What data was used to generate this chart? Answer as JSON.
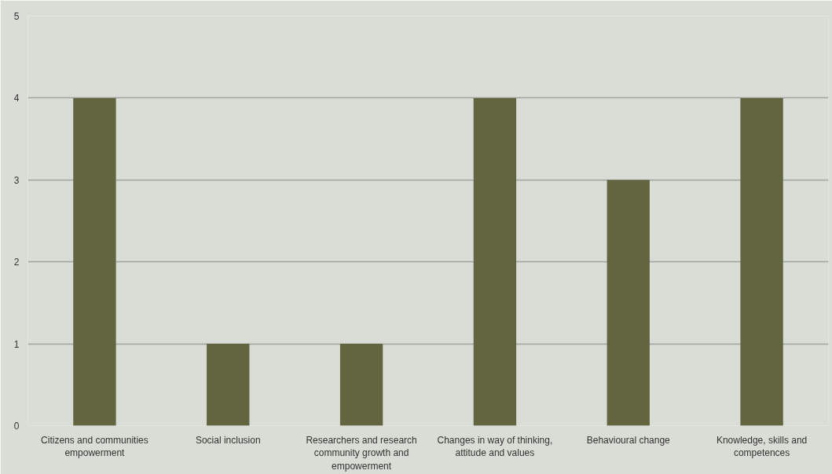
{
  "chart_data": {
    "type": "bar",
    "categories": [
      "Citizens and communities empowerment",
      "Social inclusion",
      "Researchers and research community growth and empowerment",
      "Changes in way of thinking, attitude and values",
      "Behavioural change",
      "Knowledge, skills and competences"
    ],
    "values": [
      4,
      1,
      1,
      4,
      3,
      4
    ],
    "color": "#636440",
    "ylim": [
      0,
      5
    ],
    "yticks": [
      0,
      1,
      2,
      3,
      4,
      5
    ],
    "grid": "y"
  }
}
